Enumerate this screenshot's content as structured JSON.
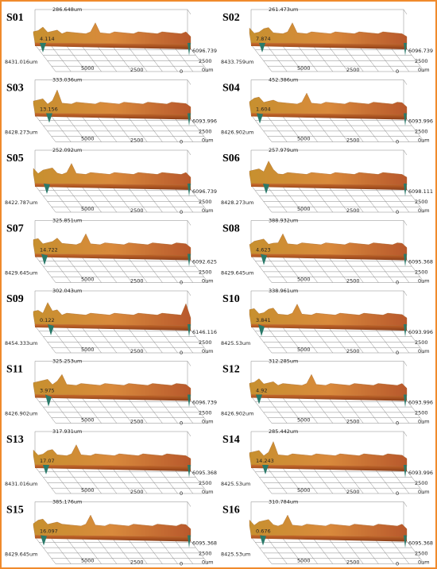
{
  "axis_ticks": {
    "x": [
      "5000",
      "2500",
      "0"
    ],
    "y": [
      "2500",
      "0um"
    ]
  },
  "panels": [
    {
      "label": "S01",
      "max": "286.648um",
      "min": "4.114",
      "x_extent": "8431.016um",
      "y_extent": "6096.739"
    },
    {
      "label": "S02",
      "max": "261.473um",
      "min": "7.874",
      "x_extent": "8433.759um",
      "y_extent": "6096.739"
    },
    {
      "label": "S03",
      "max": "333.036um",
      "min": "13.156",
      "x_extent": "8428.273um",
      "y_extent": "6093.996"
    },
    {
      "label": "S04",
      "max": "452.386um",
      "min": "1.604",
      "x_extent": "8426.902um",
      "y_extent": "6093.996"
    },
    {
      "label": "S05",
      "max": "252.092um",
      "x_extent": "8422.787um",
      "y_extent": "6096.739"
    },
    {
      "label": "S06",
      "max": "257.979um",
      "x_extent": "8428.273um",
      "y_extent": "6098.111"
    },
    {
      "label": "S07",
      "max": "325.851um",
      "min": "14.722",
      "x_extent": "8429.645um",
      "y_extent": "6092.625"
    },
    {
      "label": "S08",
      "max": "388.932um",
      "min": "4.623",
      "x_extent": "8429.645um",
      "y_extent": "6095.368"
    },
    {
      "label": "S09",
      "max": "302.043um",
      "min": "0.122",
      "x_extent": "8454.333um",
      "y_extent": "6146.116"
    },
    {
      "label": "S10",
      "max": "338.961um",
      "min": "3.841",
      "x_extent": "8425.53um",
      "y_extent": "6093.996"
    },
    {
      "label": "S11",
      "max": "325.253um",
      "min": "3.975",
      "x_extent": "8426.902um",
      "y_extent": "6096.739"
    },
    {
      "label": "S12",
      "max": "312.285um",
      "min": "4.92",
      "x_extent": "8426.902um",
      "y_extent": "6093.996"
    },
    {
      "label": "S13",
      "max": "317.931um",
      "min": "17.07",
      "x_extent": "8431.016um",
      "y_extent": "6095.368"
    },
    {
      "label": "S14",
      "max": "285.442um",
      "min": "14.243",
      "x_extent": "8425.53um",
      "y_extent": "6093.996"
    },
    {
      "label": "S15",
      "max": "385.176um",
      "min": "16.097",
      "x_extent": "8429.645um",
      "y_extent": "6095.368"
    },
    {
      "label": "S16",
      "max": "310.784um",
      "min": "0.676",
      "x_extent": "8425.53um",
      "y_extent": "6095.368"
    }
  ]
}
